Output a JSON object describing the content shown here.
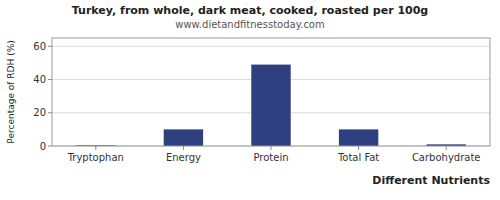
{
  "chart_data": {
    "type": "bar",
    "title": "Turkey, from whole, dark meat, cooked, roasted per 100g",
    "subtitle": "www.dietandfitnesstoday.com",
    "xlabel": "Different Nutrients",
    "ylabel": "Percentage of RDH (%)",
    "categories": [
      "Tryptophan",
      "Energy",
      "Protein",
      "Total Fat",
      "Carbohydrate"
    ],
    "values": [
      0.4,
      10,
      49,
      10,
      1
    ],
    "color": "#2e4080",
    "ylim": [
      0,
      65
    ],
    "yticks": [
      0,
      20,
      40,
      60
    ],
    "grid": true
  }
}
